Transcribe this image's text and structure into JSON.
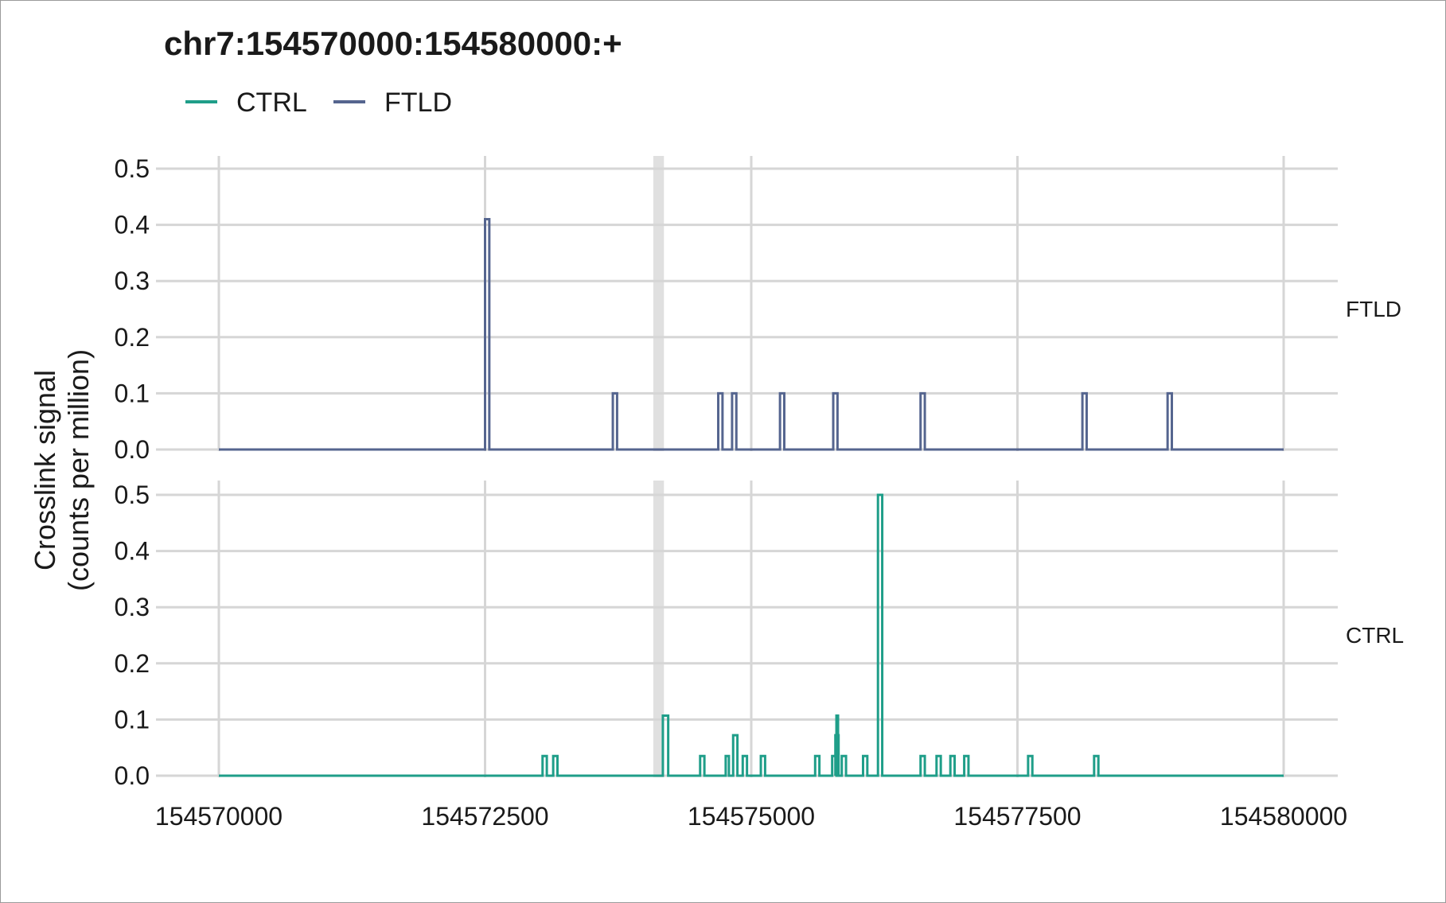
{
  "chart_data": {
    "type": "line",
    "title": "chr7:154570000:154580000:+",
    "ylabel_lines": [
      "Crosslink signal",
      "(counts per million)"
    ],
    "xlim": [
      154570000,
      154580000
    ],
    "x_ticks": [
      154570000,
      154572500,
      154575000,
      154577500,
      154580000
    ],
    "x_tick_labels": [
      "154570000",
      "154572500",
      "154575000",
      "154577500",
      "154580000"
    ],
    "ylim": [
      0,
      0.5
    ],
    "y_ticks": [
      0,
      0.1,
      0.2,
      0.3,
      0.4,
      0.5
    ],
    "y_tick_labels": [
      "0.0",
      "0.1",
      "0.2",
      "0.3",
      "0.4",
      "0.5"
    ],
    "highlight_region": [
      154574080,
      154574180
    ],
    "grid": true,
    "legend": {
      "placement": "top-left",
      "entries": [
        {
          "name": "CTRL",
          "color": "#1f9e89"
        },
        {
          "name": "FTLD",
          "color": "#55658f"
        }
      ]
    },
    "panels": [
      {
        "name": "FTLD",
        "color": "#55658f",
        "peaks": [
          {
            "start": 154572500,
            "end": 154572540,
            "value": 0.41
          },
          {
            "start": 154573700,
            "end": 154573740,
            "value": 0.1
          },
          {
            "start": 154574690,
            "end": 154574730,
            "value": 0.1
          },
          {
            "start": 154574820,
            "end": 154574860,
            "value": 0.1
          },
          {
            "start": 154575270,
            "end": 154575310,
            "value": 0.1
          },
          {
            "start": 154575770,
            "end": 154575810,
            "value": 0.1
          },
          {
            "start": 154576590,
            "end": 154576630,
            "value": 0.1
          },
          {
            "start": 154578110,
            "end": 154578150,
            "value": 0.1
          },
          {
            "start": 154578910,
            "end": 154578950,
            "value": 0.1
          }
        ]
      },
      {
        "name": "CTRL",
        "color": "#1f9e89",
        "peaks": [
          {
            "start": 154573040,
            "end": 154573080,
            "value": 0.035
          },
          {
            "start": 154573140,
            "end": 154573180,
            "value": 0.035
          },
          {
            "start": 154574170,
            "end": 154574220,
            "value": 0.107
          },
          {
            "start": 154574520,
            "end": 154574560,
            "value": 0.035
          },
          {
            "start": 154574760,
            "end": 154574790,
            "value": 0.035
          },
          {
            "start": 154574830,
            "end": 154574870,
            "value": 0.072
          },
          {
            "start": 154574920,
            "end": 154574960,
            "value": 0.035
          },
          {
            "start": 154575090,
            "end": 154575130,
            "value": 0.035
          },
          {
            "start": 154575600,
            "end": 154575640,
            "value": 0.035
          },
          {
            "start": 154575760,
            "end": 154575790,
            "value": 0.035
          },
          {
            "start": 154575790,
            "end": 154575820,
            "value": 0.072
          },
          {
            "start": 154575800,
            "end": 154575815,
            "value": 0.107
          },
          {
            "start": 154575850,
            "end": 154575890,
            "value": 0.035
          },
          {
            "start": 154576050,
            "end": 154576090,
            "value": 0.035
          },
          {
            "start": 154576190,
            "end": 154576230,
            "value": 0.5
          },
          {
            "start": 154576590,
            "end": 154576630,
            "value": 0.035
          },
          {
            "start": 154576740,
            "end": 154576780,
            "value": 0.035
          },
          {
            "start": 154576870,
            "end": 154576910,
            "value": 0.035
          },
          {
            "start": 154577000,
            "end": 154577040,
            "value": 0.035
          },
          {
            "start": 154577600,
            "end": 154577640,
            "value": 0.035
          },
          {
            "start": 154578220,
            "end": 154578260,
            "value": 0.035
          }
        ]
      }
    ]
  }
}
